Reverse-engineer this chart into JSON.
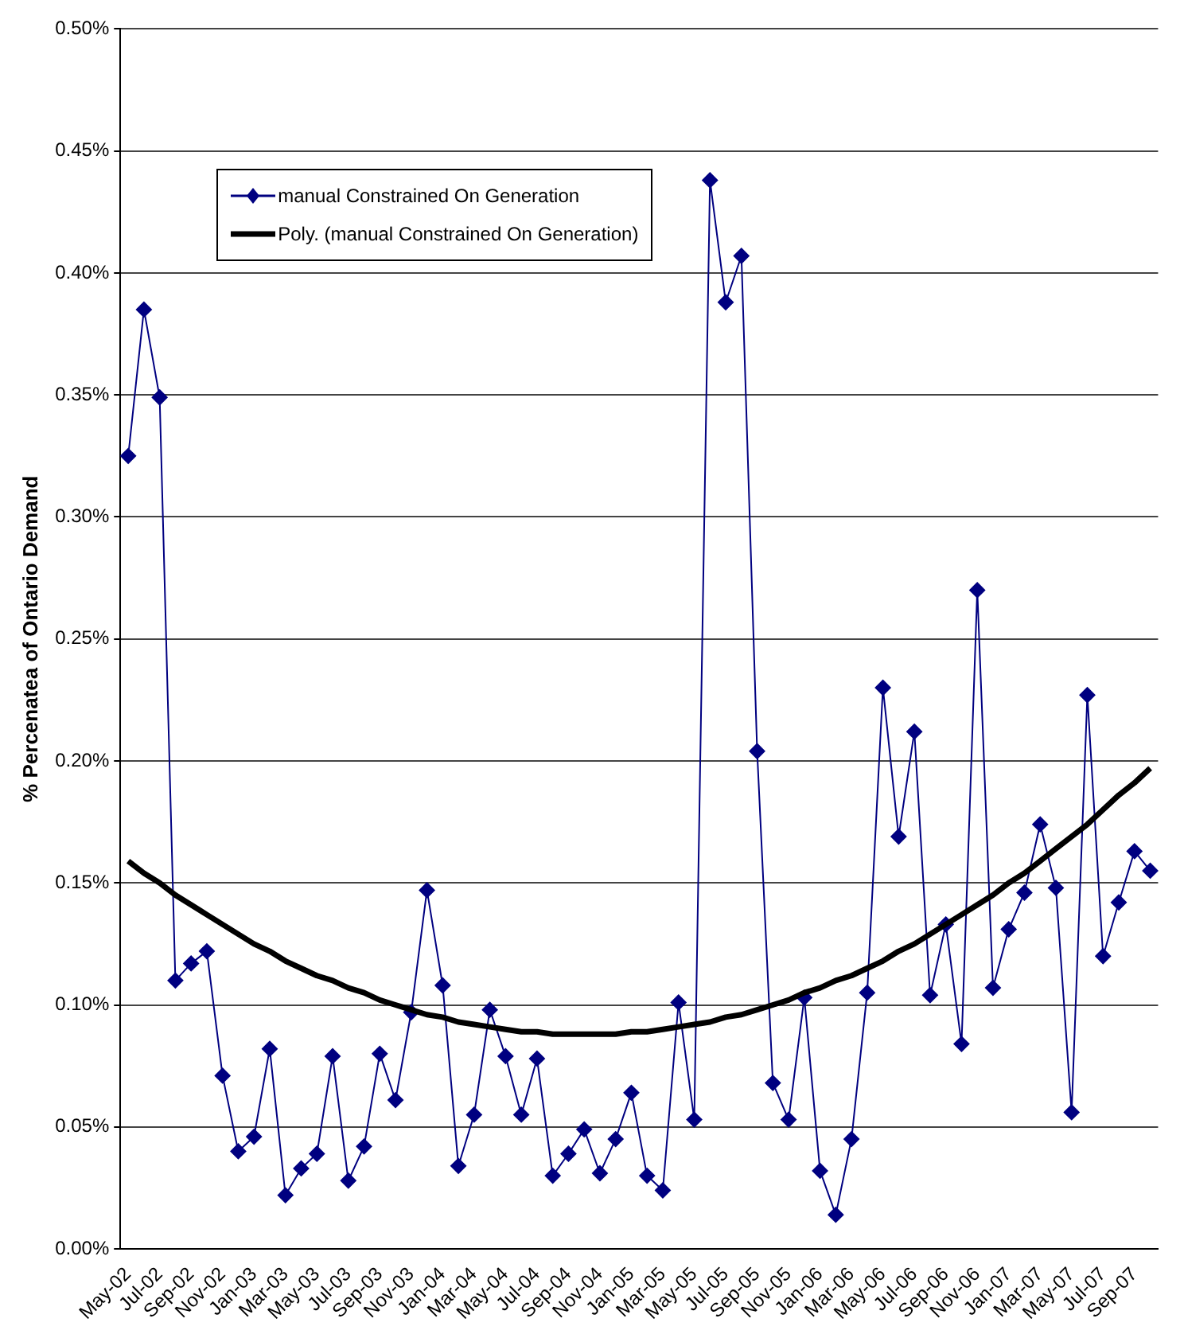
{
  "chart_data": {
    "type": "line",
    "ylabel": "% Percenatea of Ontario Demand",
    "categories": [
      "May-02",
      null,
      "Jul-02",
      null,
      "Sep-02",
      null,
      "Nov-02",
      null,
      "Jan-03",
      null,
      "Mar-03",
      null,
      "May-03",
      null,
      "Jul-03",
      null,
      "Sep-03",
      null,
      "Nov-03",
      null,
      "Jan-04",
      null,
      "Mar-04",
      null,
      "May-04",
      null,
      "Jul-04",
      null,
      "Sep-04",
      null,
      "Nov-04",
      null,
      "Jan-05",
      null,
      "Mar-05",
      null,
      "May-05",
      null,
      "Jul-05",
      null,
      "Sep-05",
      null,
      "Nov-05",
      null,
      "Jan-06",
      null,
      "Mar-06",
      null,
      "May-06",
      null,
      "Jul-06",
      null,
      "Sep-06",
      null,
      "Nov-06",
      null,
      "Jan-07",
      null,
      "Mar-07",
      null,
      "May-07",
      null,
      "Jul-07",
      null,
      "Sep-07",
      null
    ],
    "series": [
      {
        "name": "manual Constrained On Generation",
        "color": "#000080",
        "marker": "diamond",
        "values": [
          0.325,
          0.385,
          0.349,
          0.11,
          0.117,
          0.122,
          0.071,
          0.04,
          0.046,
          0.082,
          0.022,
          0.033,
          0.039,
          0.079,
          0.028,
          0.042,
          0.08,
          0.061,
          0.097,
          0.147,
          0.108,
          0.034,
          0.055,
          0.098,
          0.079,
          0.055,
          0.078,
          0.03,
          0.039,
          0.049,
          0.031,
          0.045,
          0.064,
          0.03,
          0.024,
          0.101,
          0.053,
          0.438,
          0.388,
          0.407,
          0.204,
          0.068,
          0.053,
          0.103,
          0.032,
          0.014,
          0.045,
          0.105,
          0.23,
          0.169,
          0.212,
          0.104,
          0.133,
          0.084,
          0.27,
          0.107,
          0.131,
          0.146,
          0.174,
          0.148,
          0.056,
          0.227,
          0.12,
          0.142,
          0.163,
          0.155
        ]
      },
      {
        "name": "Poly. (manual Constrained On Generation)",
        "color": "#000000",
        "marker": "none",
        "values": [
          0.159,
          0.154,
          0.15,
          0.145,
          0.141,
          0.137,
          0.133,
          0.129,
          0.125,
          0.122,
          0.118,
          0.115,
          0.112,
          0.11,
          0.107,
          0.105,
          0.102,
          0.1,
          0.098,
          0.096,
          0.095,
          0.093,
          0.092,
          0.091,
          0.09,
          0.089,
          0.089,
          0.088,
          0.088,
          0.088,
          0.088,
          0.088,
          0.089,
          0.089,
          0.09,
          0.091,
          0.092,
          0.093,
          0.095,
          0.096,
          0.098,
          0.1,
          0.102,
          0.105,
          0.107,
          0.11,
          0.112,
          0.115,
          0.118,
          0.122,
          0.125,
          0.129,
          0.133,
          0.137,
          0.141,
          0.145,
          0.15,
          0.154,
          0.159,
          0.164,
          0.169,
          0.174,
          0.18,
          0.186,
          0.191,
          0.197
        ]
      }
    ],
    "ylim": [
      0,
      0.5
    ],
    "yticks": [
      {
        "value": 0,
        "label": "0.00%"
      },
      {
        "value": 0.05,
        "label": "0.05%"
      },
      {
        "value": 0.1,
        "label": "0.10%"
      },
      {
        "value": 0.15,
        "label": "0.15%"
      },
      {
        "value": 0.2,
        "label": "0.20%"
      },
      {
        "value": 0.25,
        "label": "0.25%"
      },
      {
        "value": 0.3,
        "label": "0.30%"
      },
      {
        "value": 0.35,
        "label": "0.35%"
      },
      {
        "value": 0.4,
        "label": "0.40%"
      },
      {
        "value": 0.45,
        "label": "0.45%"
      },
      {
        "value": 0.5,
        "label": "0.50%"
      }
    ],
    "grid": "y",
    "legend": "top left",
    "line_style": "solid"
  }
}
